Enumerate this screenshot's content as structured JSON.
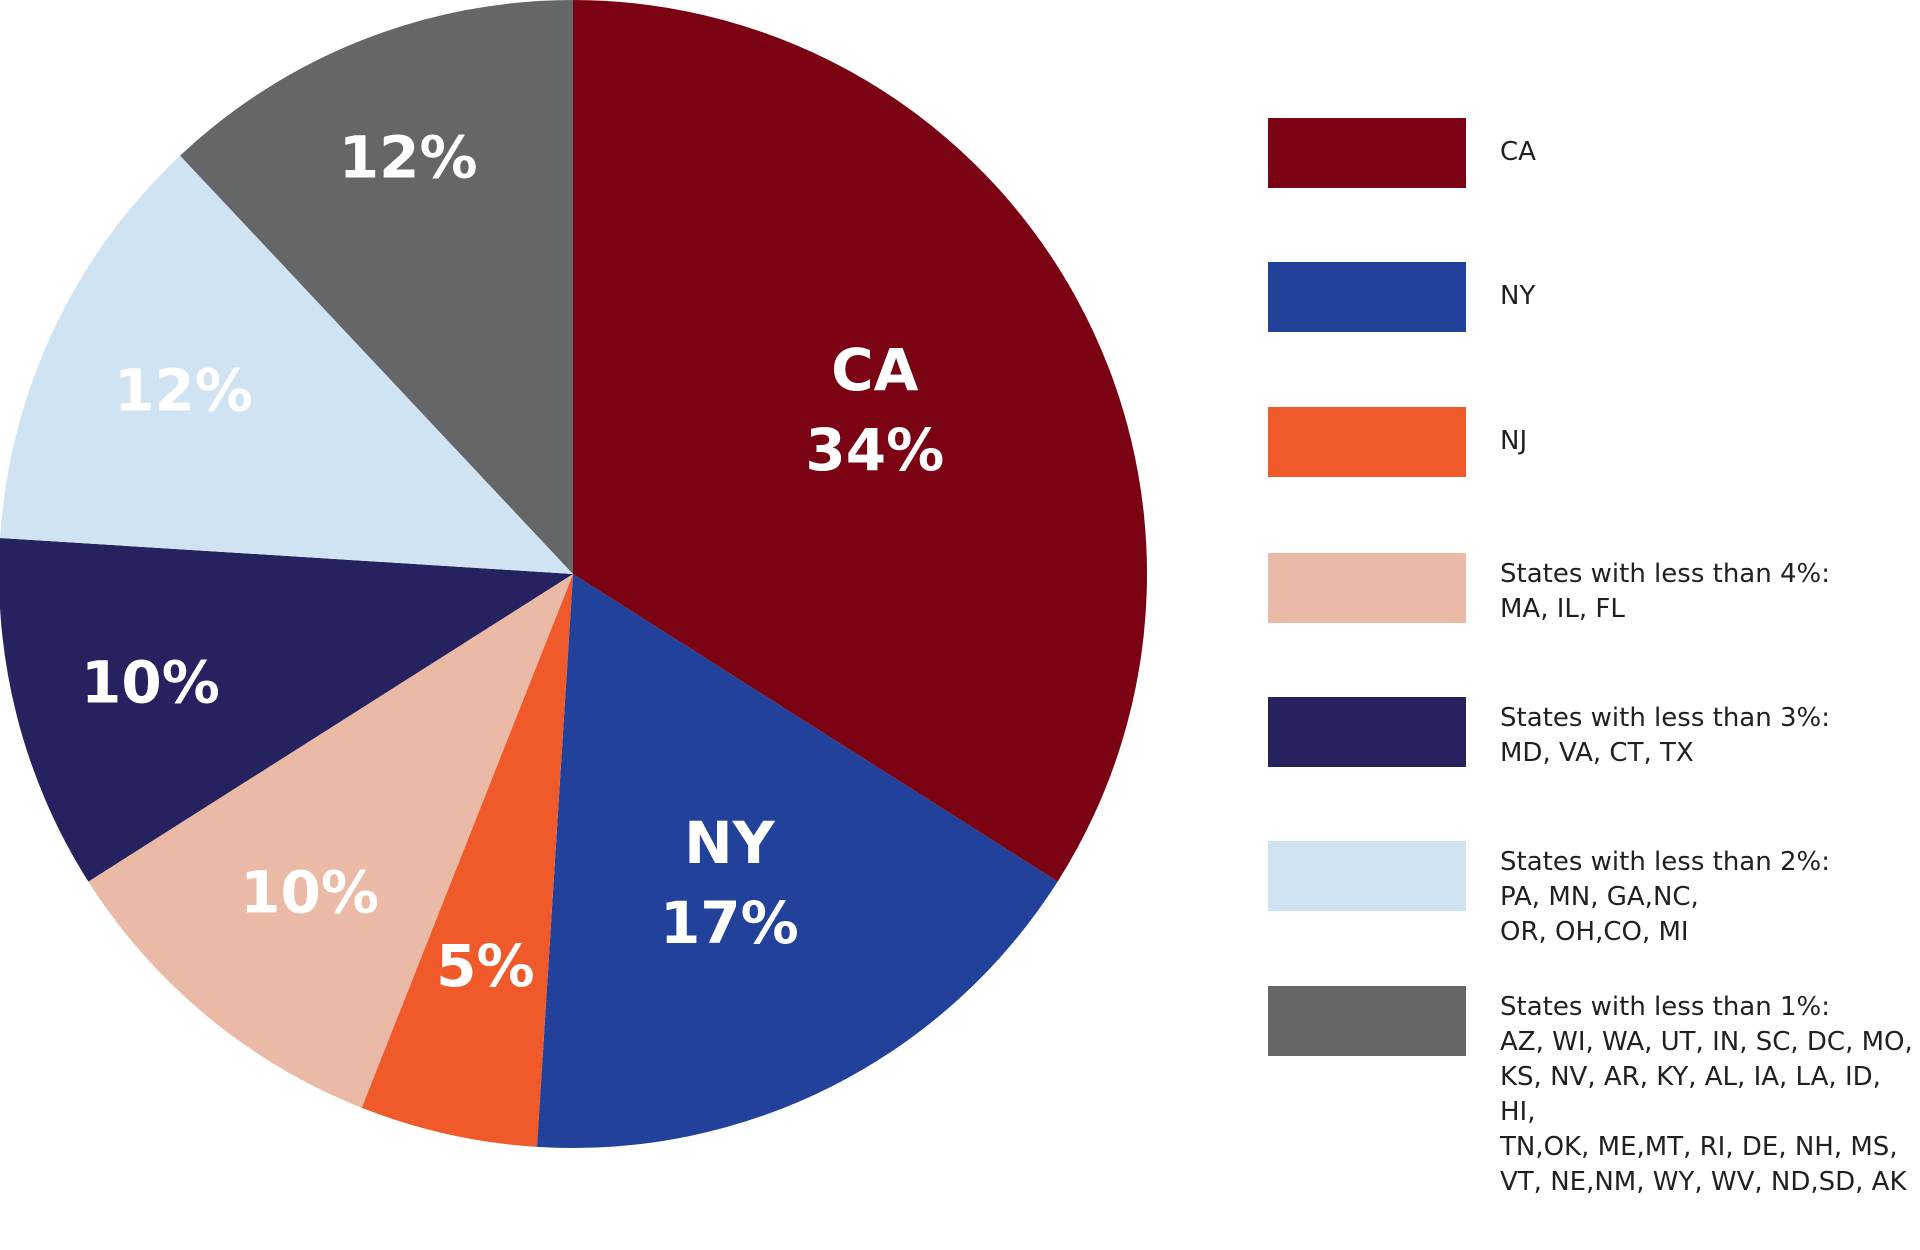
{
  "chart_data": {
    "type": "pie",
    "slices": [
      {
        "label": "CA",
        "value": 34,
        "display": "34%",
        "color": "#7a0213",
        "text_color": "#ffffff",
        "show_category": true
      },
      {
        "label": "NY",
        "value": 17,
        "display": "17%",
        "color": "#22419b",
        "text_color": "#ffffff",
        "show_category": true
      },
      {
        "label": "NJ",
        "value": 5,
        "display": "5%",
        "color": "#f05a2a",
        "text_color": "#ffffff",
        "show_category": false
      },
      {
        "label": "States with less than 4%:\nMA, IL, FL",
        "value": 10,
        "display": "10%",
        "color": "#eabaa7",
        "text_color": "#ffffff",
        "show_category": false
      },
      {
        "label": "States with less than 3%:\nMD, VA, CT, TX",
        "value": 10,
        "display": "10%",
        "color": "#262260",
        "text_color": "#ffffff",
        "show_category": false
      },
      {
        "label": "States with less than 2%:\nPA, MN, GA,NC,\nOR, OH,CO, MI",
        "value": 12,
        "display": "12%",
        "color": "#cfe3f3",
        "text_color": "#ffffff",
        "show_category": false
      },
      {
        "label": "States with less than 1%:\nAZ, WI, WA, UT, IN, SC, DC, MO,\nKS, NV, AR, KY, AL, IA, LA, ID, HI,\nTN,OK, ME,MT, RI, DE, NH, MS,\nVT, NE,NM, WY, WV, ND,SD, AK",
        "value": 12,
        "display": "12%",
        "color": "#656668",
        "text_color": "#ffffff",
        "show_category": false
      }
    ],
    "legend_position": "right",
    "start_angle": "top, clockwise"
  }
}
